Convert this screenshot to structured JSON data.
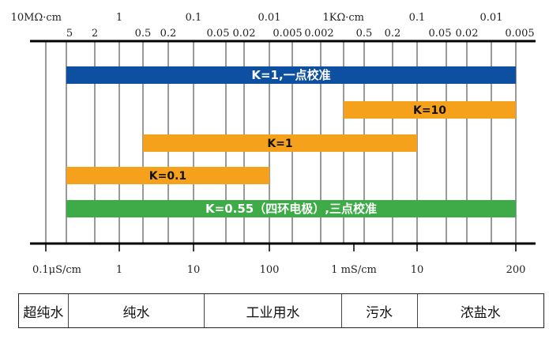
{
  "chart_data": {
    "type": "bar",
    "top_axis": {
      "tick_labels": [
        {
          "text": "10MΩ·cm",
          "font": "serif"
        },
        {
          "text": "5",
          "font": "serif"
        },
        {
          "text": "2",
          "font": "serif"
        },
        {
          "text": "1",
          "font": "serif"
        },
        {
          "text": "0.5",
          "font": "serif"
        },
        {
          "text": "0.2",
          "font": "serif"
        },
        {
          "text": "0.1",
          "font": "serif"
        },
        {
          "text": "0.05",
          "font": "serif"
        },
        {
          "text": "0.02",
          "font": "serif"
        },
        {
          "text": "0.01",
          "font": "serif"
        },
        {
          "text": "0.005",
          "font": "serif"
        },
        {
          "text": "0.002",
          "font": "serif"
        },
        {
          "text": "1KΩ·cm",
          "font": "serif"
        },
        {
          "text": "0.5",
          "font": "serif"
        },
        {
          "text": "0.2",
          "font": "serif"
        },
        {
          "text": "0.1",
          "font": "serif"
        },
        {
          "text": "0.05",
          "font": "serif"
        },
        {
          "text": "0.02",
          "font": "serif"
        },
        {
          "text": "0.01",
          "font": "serif"
        },
        {
          "text": "0.005",
          "font": "serif"
        }
      ]
    },
    "bottom_axis": {
      "tick_labels": [
        "0.1μS/cm",
        "1",
        "10",
        "100",
        "1 mS/cm",
        "10",
        "200"
      ],
      "scale": "log"
    },
    "bars": [
      {
        "label": "K=1,一点校准",
        "from": "0.2 μS/cm",
        "to": "200 mS/cm",
        "color": "#0d4fa0",
        "text_color": "#ffffff"
      },
      {
        "label": "K=10",
        "from": "1 mS/cm",
        "to": "200 mS/cm",
        "color": "#f5a11c",
        "text_color": "#111111"
      },
      {
        "label": "K=1",
        "from": "2 μS/cm",
        "to": "10 mS/cm",
        "color": "#f5a11c",
        "text_color": "#111111"
      },
      {
        "label": "K=0.1",
        "from": "0.2 μS/cm",
        "to": "100 μS/cm",
        "color": "#f5a11c",
        "text_color": "#111111"
      },
      {
        "label": "K=0.55（四环电极）,三点校准",
        "from": "0.2 μS/cm",
        "to": "200 mS/cm",
        "color": "#3eaa48",
        "text_color": "#ffffff"
      }
    ],
    "grid": true
  },
  "water_types": [
    {
      "name": "超纯水"
    },
    {
      "name": "纯水"
    },
    {
      "name": "工业用水"
    },
    {
      "name": "污水"
    },
    {
      "name": "浓盐水"
    }
  ]
}
